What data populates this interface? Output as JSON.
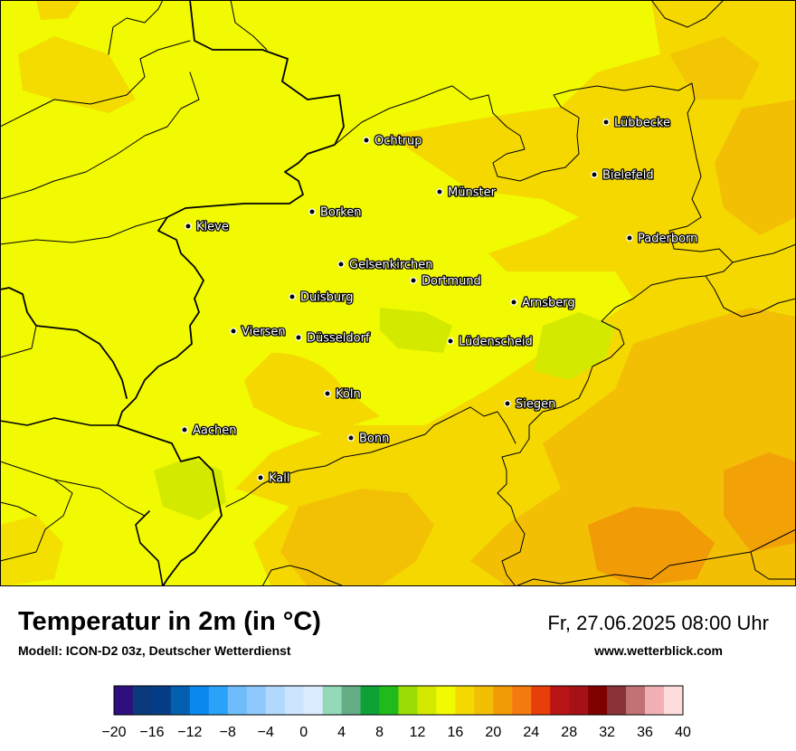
{
  "title": "Temperatur in 2m (in °C)",
  "model": "Modell: ICON-D2 03z, Deutscher Wetterdienst",
  "datetime": "Fr, 27.06.2025 08:00 Uhr",
  "website": "www.wetterblick.com",
  "cities": [
    {
      "name": "Lübbecke"
    },
    {
      "name": "Ochtrup"
    },
    {
      "name": "Bielefeld"
    },
    {
      "name": "Münster"
    },
    {
      "name": "Kleve"
    },
    {
      "name": "Borken"
    },
    {
      "name": "Paderborn"
    },
    {
      "name": "Gelsenkirchen"
    },
    {
      "name": "Dortmund"
    },
    {
      "name": "Duisburg"
    },
    {
      "name": "Arnsberg"
    },
    {
      "name": "Viersen"
    },
    {
      "name": "Düsseldorf"
    },
    {
      "name": "Lüdenscheid"
    },
    {
      "name": "Köln"
    },
    {
      "name": "Siegen"
    },
    {
      "name": "Aachen"
    },
    {
      "name": "Bonn"
    },
    {
      "name": "Kall"
    }
  ],
  "legend": {
    "min": -20,
    "max": 40,
    "step": 2,
    "tick_labels": [
      "−20",
      "−16",
      "−12",
      "−8",
      "−4",
      "0",
      "4",
      "8",
      "12",
      "16",
      "20",
      "24",
      "28",
      "32",
      "36",
      "40"
    ],
    "colors": [
      "#2e0f7d",
      "#0b3a7c",
      "#053e86",
      "#045fb0",
      "#0988ee",
      "#2aa2f9",
      "#6fbcfb",
      "#8ec8fc",
      "#b0d9fd",
      "#cce4fe",
      "#dceafd",
      "#93d9b8",
      "#65ad87",
      "#0da136",
      "#20bb1a",
      "#9bdc04",
      "#d3ea00",
      "#f1fa00",
      "#f4d800",
      "#f2bf05",
      "#f19b07",
      "#f37a0f",
      "#e83e0b",
      "#b91416",
      "#a61118",
      "#800000",
      "#8b3138",
      "#c17073",
      "#f0b0b4",
      "#ffdcdc"
    ]
  },
  "colors": {
    "base_field": "#f1fa00",
    "warm_field": "#f4d800",
    "warmer_field": "#f2bf05",
    "hot_field": "#f19b07",
    "cool_field": "#d3ea00"
  }
}
